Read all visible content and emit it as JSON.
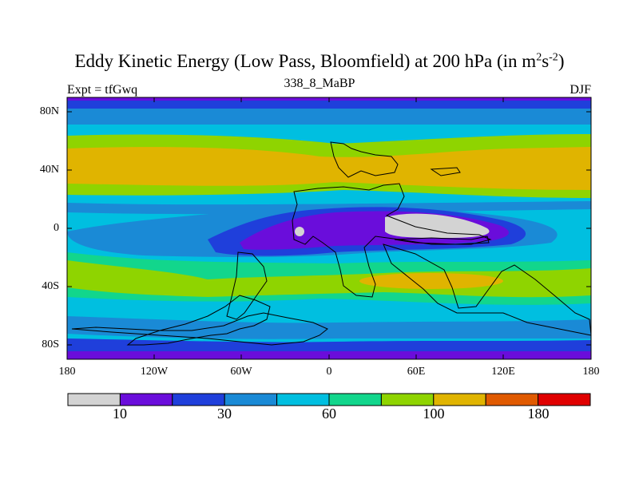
{
  "title_main": "Eddy Kinetic Energy (Low Pass, Bloomfield) at 200 hPa (in m",
  "title_sup1": "2",
  "title_mid": "s",
  "title_sup2": "-2",
  "title_end": ")",
  "subtitle": "338_8_MaBP",
  "experiment_label": "Expt = tfGwq",
  "season_label": "DJF",
  "lat_ticks": [
    "80N",
    "40N",
    "0",
    "40S",
    "80S"
  ],
  "lon_ticks": [
    "180",
    "120W",
    "60W",
    "0",
    "60E",
    "120E",
    "180"
  ],
  "colorbar_labels": [
    "10",
    "30",
    "60",
    "100",
    "180"
  ],
  "colorbar_colors": [
    "#d3d3d3",
    "#6a0ddb",
    "#1f3fdb",
    "#1a8ad6",
    "#00bfe0",
    "#12d68c",
    "#8fd400",
    "#e0b400",
    "#e05a00",
    "#e00000"
  ]
}
